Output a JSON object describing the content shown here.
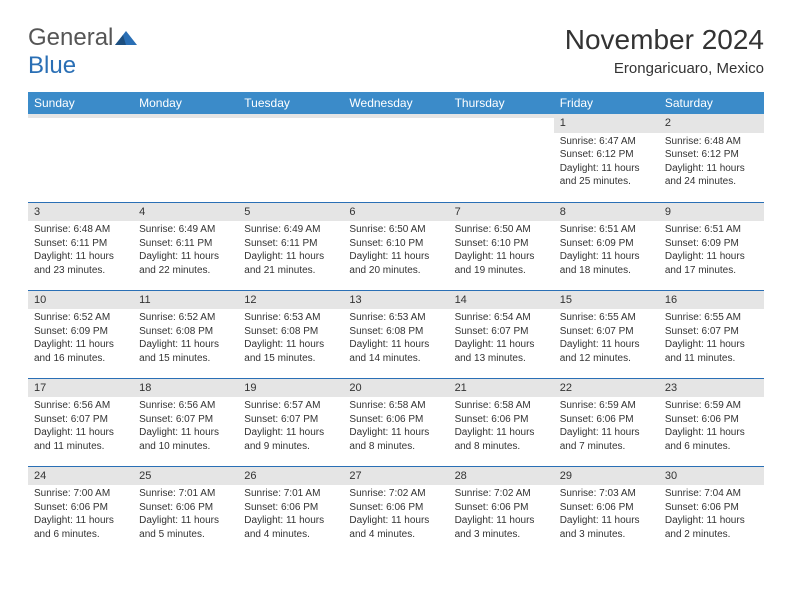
{
  "logo": {
    "general": "General",
    "blue": "Blue"
  },
  "title": "November 2024",
  "location": "Erongaricuaro, Mexico",
  "colors": {
    "header_bg": "#3b8bc9",
    "header_text": "#ffffff",
    "border": "#2a6fb5",
    "daynum_bg": "#e5e5e5",
    "text": "#333333",
    "logo_blue": "#2a6fb5",
    "logo_gray": "#555555",
    "page_bg": "#ffffff"
  },
  "day_headers": [
    "Sunday",
    "Monday",
    "Tuesday",
    "Wednesday",
    "Thursday",
    "Friday",
    "Saturday"
  ],
  "weeks": [
    [
      {
        "num": "",
        "sunrise": "",
        "sunset": "",
        "daylight": ""
      },
      {
        "num": "",
        "sunrise": "",
        "sunset": "",
        "daylight": ""
      },
      {
        "num": "",
        "sunrise": "",
        "sunset": "",
        "daylight": ""
      },
      {
        "num": "",
        "sunrise": "",
        "sunset": "",
        "daylight": ""
      },
      {
        "num": "",
        "sunrise": "",
        "sunset": "",
        "daylight": ""
      },
      {
        "num": "1",
        "sunrise": "Sunrise: 6:47 AM",
        "sunset": "Sunset: 6:12 PM",
        "daylight": "Daylight: 11 hours and 25 minutes."
      },
      {
        "num": "2",
        "sunrise": "Sunrise: 6:48 AM",
        "sunset": "Sunset: 6:12 PM",
        "daylight": "Daylight: 11 hours and 24 minutes."
      }
    ],
    [
      {
        "num": "3",
        "sunrise": "Sunrise: 6:48 AM",
        "sunset": "Sunset: 6:11 PM",
        "daylight": "Daylight: 11 hours and 23 minutes."
      },
      {
        "num": "4",
        "sunrise": "Sunrise: 6:49 AM",
        "sunset": "Sunset: 6:11 PM",
        "daylight": "Daylight: 11 hours and 22 minutes."
      },
      {
        "num": "5",
        "sunrise": "Sunrise: 6:49 AM",
        "sunset": "Sunset: 6:11 PM",
        "daylight": "Daylight: 11 hours and 21 minutes."
      },
      {
        "num": "6",
        "sunrise": "Sunrise: 6:50 AM",
        "sunset": "Sunset: 6:10 PM",
        "daylight": "Daylight: 11 hours and 20 minutes."
      },
      {
        "num": "7",
        "sunrise": "Sunrise: 6:50 AM",
        "sunset": "Sunset: 6:10 PM",
        "daylight": "Daylight: 11 hours and 19 minutes."
      },
      {
        "num": "8",
        "sunrise": "Sunrise: 6:51 AM",
        "sunset": "Sunset: 6:09 PM",
        "daylight": "Daylight: 11 hours and 18 minutes."
      },
      {
        "num": "9",
        "sunrise": "Sunrise: 6:51 AM",
        "sunset": "Sunset: 6:09 PM",
        "daylight": "Daylight: 11 hours and 17 minutes."
      }
    ],
    [
      {
        "num": "10",
        "sunrise": "Sunrise: 6:52 AM",
        "sunset": "Sunset: 6:09 PM",
        "daylight": "Daylight: 11 hours and 16 minutes."
      },
      {
        "num": "11",
        "sunrise": "Sunrise: 6:52 AM",
        "sunset": "Sunset: 6:08 PM",
        "daylight": "Daylight: 11 hours and 15 minutes."
      },
      {
        "num": "12",
        "sunrise": "Sunrise: 6:53 AM",
        "sunset": "Sunset: 6:08 PM",
        "daylight": "Daylight: 11 hours and 15 minutes."
      },
      {
        "num": "13",
        "sunrise": "Sunrise: 6:53 AM",
        "sunset": "Sunset: 6:08 PM",
        "daylight": "Daylight: 11 hours and 14 minutes."
      },
      {
        "num": "14",
        "sunrise": "Sunrise: 6:54 AM",
        "sunset": "Sunset: 6:07 PM",
        "daylight": "Daylight: 11 hours and 13 minutes."
      },
      {
        "num": "15",
        "sunrise": "Sunrise: 6:55 AM",
        "sunset": "Sunset: 6:07 PM",
        "daylight": "Daylight: 11 hours and 12 minutes."
      },
      {
        "num": "16",
        "sunrise": "Sunrise: 6:55 AM",
        "sunset": "Sunset: 6:07 PM",
        "daylight": "Daylight: 11 hours and 11 minutes."
      }
    ],
    [
      {
        "num": "17",
        "sunrise": "Sunrise: 6:56 AM",
        "sunset": "Sunset: 6:07 PM",
        "daylight": "Daylight: 11 hours and 11 minutes."
      },
      {
        "num": "18",
        "sunrise": "Sunrise: 6:56 AM",
        "sunset": "Sunset: 6:07 PM",
        "daylight": "Daylight: 11 hours and 10 minutes."
      },
      {
        "num": "19",
        "sunrise": "Sunrise: 6:57 AM",
        "sunset": "Sunset: 6:07 PM",
        "daylight": "Daylight: 11 hours and 9 minutes."
      },
      {
        "num": "20",
        "sunrise": "Sunrise: 6:58 AM",
        "sunset": "Sunset: 6:06 PM",
        "daylight": "Daylight: 11 hours and 8 minutes."
      },
      {
        "num": "21",
        "sunrise": "Sunrise: 6:58 AM",
        "sunset": "Sunset: 6:06 PM",
        "daylight": "Daylight: 11 hours and 8 minutes."
      },
      {
        "num": "22",
        "sunrise": "Sunrise: 6:59 AM",
        "sunset": "Sunset: 6:06 PM",
        "daylight": "Daylight: 11 hours and 7 minutes."
      },
      {
        "num": "23",
        "sunrise": "Sunrise: 6:59 AM",
        "sunset": "Sunset: 6:06 PM",
        "daylight": "Daylight: 11 hours and 6 minutes."
      }
    ],
    [
      {
        "num": "24",
        "sunrise": "Sunrise: 7:00 AM",
        "sunset": "Sunset: 6:06 PM",
        "daylight": "Daylight: 11 hours and 6 minutes."
      },
      {
        "num": "25",
        "sunrise": "Sunrise: 7:01 AM",
        "sunset": "Sunset: 6:06 PM",
        "daylight": "Daylight: 11 hours and 5 minutes."
      },
      {
        "num": "26",
        "sunrise": "Sunrise: 7:01 AM",
        "sunset": "Sunset: 6:06 PM",
        "daylight": "Daylight: 11 hours and 4 minutes."
      },
      {
        "num": "27",
        "sunrise": "Sunrise: 7:02 AM",
        "sunset": "Sunset: 6:06 PM",
        "daylight": "Daylight: 11 hours and 4 minutes."
      },
      {
        "num": "28",
        "sunrise": "Sunrise: 7:02 AM",
        "sunset": "Sunset: 6:06 PM",
        "daylight": "Daylight: 11 hours and 3 minutes."
      },
      {
        "num": "29",
        "sunrise": "Sunrise: 7:03 AM",
        "sunset": "Sunset: 6:06 PM",
        "daylight": "Daylight: 11 hours and 3 minutes."
      },
      {
        "num": "30",
        "sunrise": "Sunrise: 7:04 AM",
        "sunset": "Sunset: 6:06 PM",
        "daylight": "Daylight: 11 hours and 2 minutes."
      }
    ]
  ]
}
